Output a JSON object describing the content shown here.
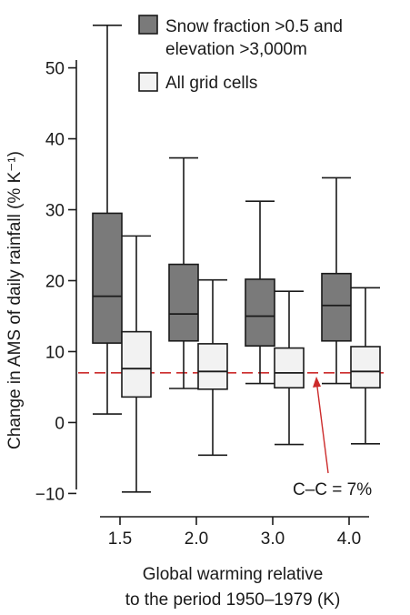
{
  "chart_data": {
    "type": "box",
    "title": "",
    "ylabel": "Change in AMS of daily rainfall (% K⁻¹)",
    "xlabel_lines": [
      "Global warming relative",
      "to the period 1950–1979 (K)"
    ],
    "categories": [
      "1.5",
      "2.0",
      "3.0",
      "4.0"
    ],
    "ylim": [
      -12,
      57
    ],
    "yticks": [
      -10,
      0,
      10,
      20,
      30,
      40,
      50
    ],
    "ytick_labels": [
      "−10",
      "0",
      "10",
      "20",
      "30",
      "40",
      "50"
    ],
    "grid": false,
    "legend_position": "top-right",
    "series": [
      {
        "name_lines": [
          "Snow fraction >0.5 and",
          "elevation >3,000m"
        ],
        "color": "#7a7a7a",
        "boxes": [
          {
            "whisker_low": 1.2,
            "q1": 11.2,
            "median": 17.8,
            "q3": 29.5,
            "whisker_high": 56.0
          },
          {
            "whisker_low": 4.8,
            "q1": 11.5,
            "median": 15.3,
            "q3": 22.3,
            "whisker_high": 37.3
          },
          {
            "whisker_low": 5.5,
            "q1": 10.8,
            "median": 15.0,
            "q3": 20.2,
            "whisker_high": 31.2
          },
          {
            "whisker_low": 5.5,
            "q1": 11.5,
            "median": 16.5,
            "q3": 21.0,
            "whisker_high": 34.5
          }
        ]
      },
      {
        "name_lines": [
          "All grid cells"
        ],
        "color": "#f2f2f2",
        "boxes": [
          {
            "whisker_low": -9.8,
            "q1": 3.6,
            "median": 7.6,
            "q3": 12.8,
            "whisker_high": 26.3
          },
          {
            "whisker_low": -4.6,
            "q1": 4.7,
            "median": 7.2,
            "q3": 11.1,
            "whisker_high": 20.1
          },
          {
            "whisker_low": -3.1,
            "q1": 4.9,
            "median": 7.0,
            "q3": 10.5,
            "whisker_high": 18.5
          },
          {
            "whisker_low": -3.0,
            "q1": 4.9,
            "median": 7.2,
            "q3": 10.7,
            "whisker_high": 19.0
          }
        ]
      }
    ],
    "reference_line": {
      "value": 7,
      "label": "C–C = 7%",
      "color": "#cc2b2b",
      "style": "dashed"
    }
  }
}
